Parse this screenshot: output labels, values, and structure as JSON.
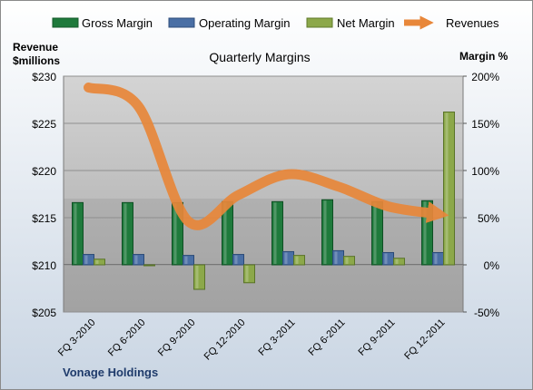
{
  "chart_data": {
    "type": "bar",
    "title": "Quarterly Margins",
    "left_axis_label_line1": "Revenue",
    "left_axis_label_line2": "$millions",
    "right_axis_label": "Margin %",
    "footer": "Vonage Holdings",
    "categories": [
      "FQ 3-2010",
      "FQ 6-2010",
      "FQ 9-2010",
      "FQ 12-2010",
      "FQ 3-2011",
      "FQ 6-2011",
      "FQ 9-2011",
      "FQ 12-2011"
    ],
    "left_ticks": [
      "$230",
      "$225",
      "$220",
      "$215",
      "$210",
      "$205"
    ],
    "right_ticks": [
      "200%",
      "150%",
      "100%",
      "50%",
      "0%",
      "-50%"
    ],
    "left_ylim": [
      205,
      230
    ],
    "right_ylim": [
      -50,
      200
    ],
    "series": [
      {
        "name": "Gross Margin",
        "axis": "right",
        "color": "#1f7a3c",
        "values": [
          66,
          66,
          66,
          67,
          67,
          69,
          67,
          68
        ]
      },
      {
        "name": "Operating Margin",
        "axis": "right",
        "color": "#4a6fa5",
        "values": [
          11,
          11,
          10,
          11,
          14,
          15,
          13,
          13
        ]
      },
      {
        "name": "Net Margin",
        "axis": "right",
        "color": "#8ca84a",
        "values": [
          6,
          0,
          -26,
          -19,
          10,
          9,
          7,
          162
        ]
      },
      {
        "name": "Revenues",
        "type": "line",
        "axis": "left",
        "color": "#e8873a",
        "values": [
          228.8,
          226.8,
          214.6,
          217.4,
          219.6,
          218.3,
          216.2,
          215.4
        ]
      }
    ],
    "legend_position": "top",
    "colors": {
      "plot_bg_top": "#c9c9c9",
      "plot_bg_bottom": "#a9a9a9",
      "frame_bg": "#dfe4ea"
    }
  }
}
